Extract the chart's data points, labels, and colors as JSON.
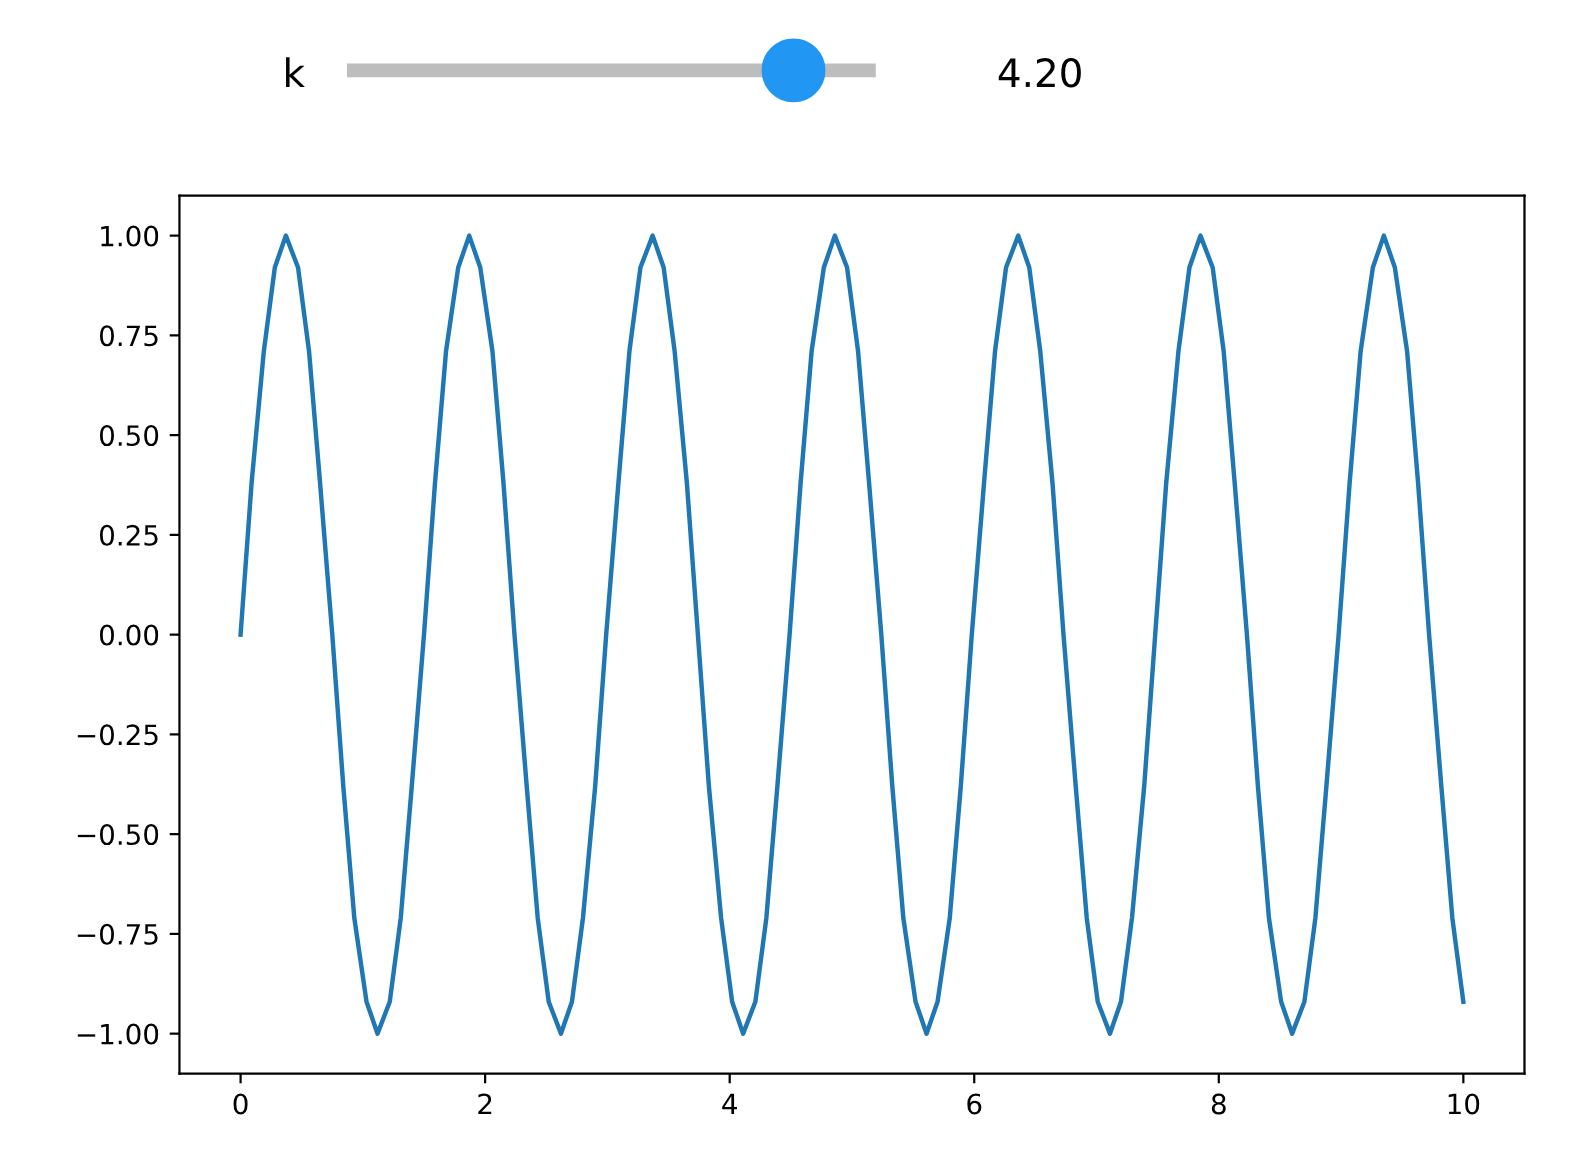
{
  "chart_data": {
    "type": "line",
    "annotations": [
      "k",
      "4.20"
    ],
    "x": [
      0,
      0.09,
      0.19,
      0.28,
      0.37,
      0.47,
      0.56,
      0.65,
      0.75,
      0.84,
      0.93,
      1.03,
      1.12,
      1.22,
      1.31,
      1.4,
      1.5,
      1.59,
      1.68,
      1.78,
      1.87,
      1.96,
      2.06,
      2.15,
      2.24,
      2.34,
      2.43,
      2.52,
      2.62,
      2.71,
      2.8,
      2.9,
      2.99,
      3.09,
      3.18,
      3.27,
      3.37,
      3.46,
      3.55,
      3.65,
      3.74,
      3.83,
      3.93,
      4.02,
      4.11,
      4.21,
      4.3,
      4.39,
      4.49,
      4.58,
      4.67,
      4.77,
      4.86,
      4.96,
      5.05,
      5.14,
      5.24,
      5.33,
      5.42,
      5.52,
      5.61,
      5.7,
      5.8,
      5.89,
      5.98,
      6.08,
      6.17,
      6.26,
      6.36,
      6.45,
      6.54,
      6.64,
      6.73,
      6.83,
      6.92,
      7.01,
      7.11,
      7.2,
      7.29,
      7.39,
      7.48,
      7.57,
      7.67,
      7.76,
      7.85,
      7.95,
      8.04,
      8.13,
      8.23,
      8.32,
      8.41,
      8.51,
      8.6,
      8.7,
      8.79,
      8.88,
      8.98,
      9.07,
      9.16,
      9.26,
      9.35,
      9.44,
      9.54,
      9.63,
      9.72,
      9.82,
      9.91,
      10
    ],
    "series": [
      {
        "color": "#1f77b4",
        "values": [
          0,
          0.38,
          0.71,
          0.92,
          1,
          0.92,
          0.71,
          0.38,
          0,
          -0.38,
          -0.71,
          -0.92,
          -1,
          -0.92,
          -0.71,
          -0.38,
          0,
          0.38,
          0.71,
          0.92,
          1,
          0.92,
          0.71,
          0.38,
          0,
          -0.38,
          -0.71,
          -0.92,
          -1,
          -0.92,
          -0.71,
          -0.38,
          0,
          0.38,
          0.71,
          0.92,
          1,
          0.92,
          0.71,
          0.38,
          0,
          -0.38,
          -0.71,
          -0.92,
          -1,
          -0.92,
          -0.71,
          -0.38,
          0,
          0.38,
          0.71,
          0.92,
          1,
          0.92,
          0.71,
          0.38,
          0,
          -0.38,
          -0.71,
          -0.92,
          -1,
          -0.92,
          -0.71,
          -0.38,
          0,
          0.38,
          0.71,
          0.92,
          1,
          0.92,
          0.71,
          0.38,
          0,
          -0.38,
          -0.71,
          -0.92,
          -1,
          -0.92,
          -0.71,
          -0.38,
          0,
          0.38,
          0.71,
          0.92,
          1,
          0.92,
          0.71,
          0.38,
          0,
          -0.38,
          -0.71,
          -0.92,
          -1,
          -0.92,
          -0.71,
          -0.38,
          0,
          0.38,
          0.71,
          0.92,
          1,
          0.92,
          0.71,
          0.38,
          0,
          -0.38,
          -0.71,
          -0.92
        ]
      }
    ],
    "xlim": [
      -0.5,
      10.5
    ],
    "xticks": [
      0,
      2,
      4,
      6,
      8,
      10
    ],
    "ylim": [
      -1.1,
      1.1
    ],
    "yticks": [
      {
        "value": -1,
        "label": "−1.00"
      },
      {
        "value": -0.75,
        "label": "−0.75"
      },
      {
        "value": -0.5,
        "label": "−0.50"
      },
      {
        "value": -0.25,
        "label": "−0.25"
      },
      {
        "value": 0,
        "label": "0.00"
      },
      {
        "value": 0.25,
        "label": "0.25"
      },
      {
        "value": 0.5,
        "label": "0.50"
      },
      {
        "value": 0.75,
        "label": "0.75"
      },
      {
        "value": 1,
        "label": "1.00"
      }
    ],
    "grid": false
  }
}
